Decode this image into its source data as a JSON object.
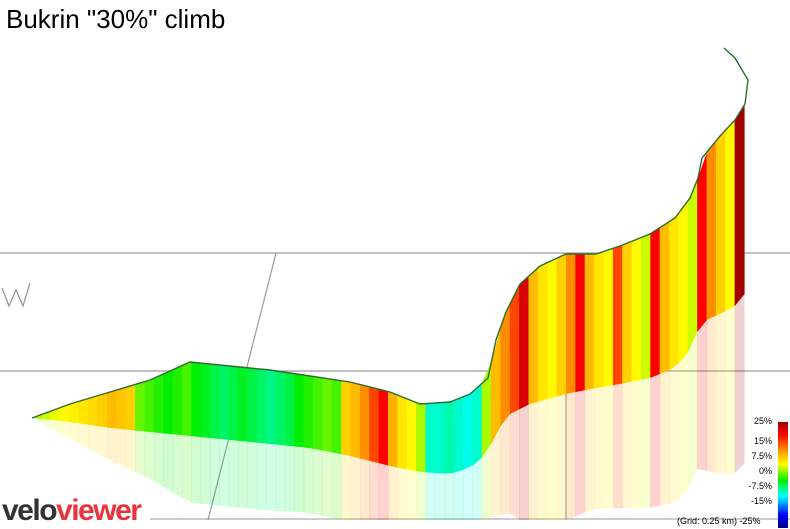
{
  "title": "Bukrin \"30%\" climb",
  "logo": {
    "part1": "velo",
    "part2": "viewer",
    "colors": {
      "velo": "#333333",
      "viewer": "#e8343c"
    }
  },
  "legend": {
    "labels": [
      "25%",
      "15%",
      "7.5%",
      "0%",
      "-7.5%",
      "-15%",
      "-25%"
    ],
    "grid_note": "(Grid: 0.25 km)"
  },
  "chart_data": {
    "type": "area",
    "title": "Bukrin \"30%\" climb",
    "description_of_encoding": "",
    "profile_gradients_pct": [
      5,
      6,
      7,
      8,
      9,
      10,
      11,
      12,
      14,
      13,
      12,
      3,
      2,
      1,
      0,
      1,
      2,
      0,
      -1,
      -2,
      -3,
      -2,
      -1,
      -2,
      -3,
      -4,
      -3,
      -2,
      0,
      1,
      2,
      3,
      2,
      12,
      14,
      16,
      18,
      20,
      15,
      10,
      8,
      5,
      -6,
      -6,
      -5,
      -6,
      -7,
      -6,
      5,
      14,
      16,
      18,
      22,
      14,
      10,
      8,
      12,
      16,
      20,
      14,
      10,
      8,
      18,
      12,
      8,
      6,
      20,
      14,
      10,
      8,
      6,
      20,
      16,
      12,
      8,
      25
    ]
  }
}
